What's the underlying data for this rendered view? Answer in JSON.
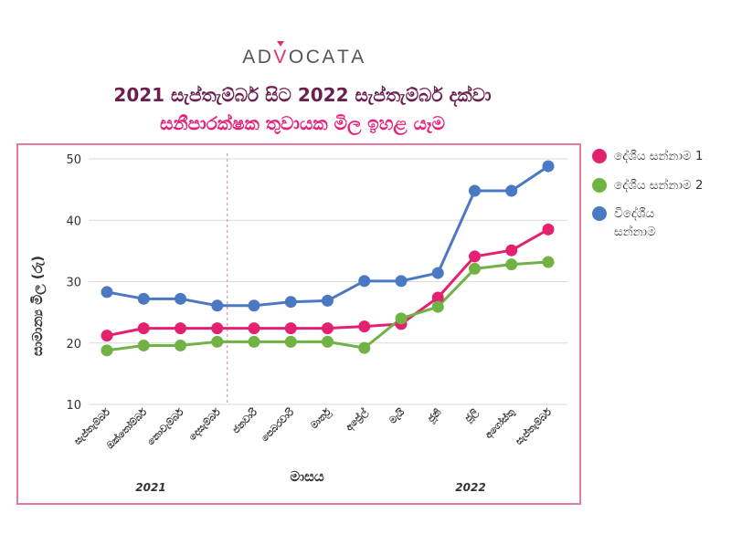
{
  "logo": {
    "text": "ADVOCATA",
    "text_color": "#555555",
    "accent_color": "#e0306e"
  },
  "colors": {
    "title": "#6b1f4f",
    "subtitle": "#e5207a",
    "frame": "#e27aa2",
    "separator": "#e27aa2"
  },
  "chart_data": {
    "type": "line",
    "title": "2021 සැප්තැම්බර් සිට 2022 සැප්තැම්බර් දක්වා",
    "subtitle": "සනීපාරක්ෂක තුවායක මිල ඉහළ යෑම",
    "xlabel": "මාසය",
    "ylabel": "සාමාන්‍ය මිල (රු)",
    "categories": [
      "සැප්තැම්බර්",
      "ඔක්තෝම්බර්",
      "නොවැම්බර්",
      "දෙසැම්බර්",
      "ජනවාරි",
      "පෙබරවාරි",
      "මාර්තු",
      "අප්‍රේල්",
      "මැයි",
      "ජූනි",
      "ජූලි",
      "අගෝස්තු",
      "සැප්තැම්බර්"
    ],
    "year_groups": [
      {
        "label": "2021",
        "start": 0,
        "end": 3
      },
      {
        "label": "2022",
        "start": 4,
        "end": 12
      }
    ],
    "ylim": [
      10,
      50
    ],
    "yticks": [
      10,
      20,
      30,
      40,
      50
    ],
    "grid": "horizontal",
    "legend": "right",
    "series": [
      {
        "name": "දේශීය සන්නාම 1",
        "color": "#e3216f",
        "values": [
          21.2,
          22.4,
          22.4,
          22.4,
          22.4,
          22.4,
          22.4,
          22.7,
          23.1,
          27.4,
          34.1,
          35.1,
          38.5
        ]
      },
      {
        "name": "දේශීය සන්නාම 2",
        "color": "#71b245",
        "values": [
          18.8,
          19.6,
          19.6,
          20.2,
          20.2,
          20.2,
          20.2,
          19.2,
          24.0,
          25.9,
          32.1,
          32.8,
          33.2
        ]
      },
      {
        "name": "විදේශීය සන්නාම",
        "color": "#4a78c3",
        "values": [
          28.3,
          27.2,
          27.2,
          26.1,
          26.1,
          26.7,
          26.9,
          30.1,
          30.1,
          31.4,
          44.8,
          44.8,
          48.8
        ]
      }
    ]
  }
}
